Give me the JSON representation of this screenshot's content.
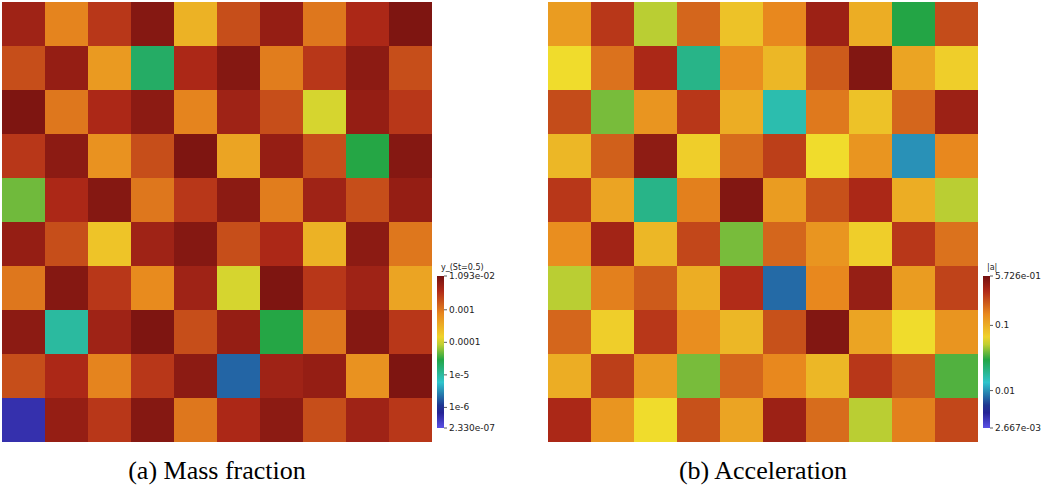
{
  "chart_data": [
    {
      "type": "heatmap",
      "title": "(a) Mass fraction",
      "log": true,
      "tick_labels": false,
      "colorbar_label": "y_(St=0.5)",
      "colorbar_range": [
        2.33e-07,
        0.01093
      ],
      "colorbar_ticks": [
        {
          "value": 2.33e-07,
          "label": "2.330e-07"
        },
        {
          "value": 1e-06,
          "label": "1e-6"
        },
        {
          "value": 1e-05,
          "label": "1e-5"
        },
        0.0001,
        0.001,
        {
          "value": 0.01093,
          "label": "1.093e-02"
        }
      ],
      "cells": [
        [
          0.005,
          0.0008,
          0.003,
          0.008,
          0.0003,
          0.002,
          0.006,
          0.001,
          0.004,
          0.009
        ],
        [
          0.002,
          0.006,
          0.0005,
          2e-05,
          0.004,
          0.008,
          0.0009,
          0.003,
          0.007,
          0.002
        ],
        [
          0.009,
          0.001,
          0.004,
          0.007,
          0.0008,
          0.005,
          0.002,
          0.0001,
          0.006,
          0.003
        ],
        [
          0.003,
          0.007,
          0.0006,
          0.002,
          0.009,
          0.0004,
          0.006,
          0.002,
          3e-05,
          0.008
        ],
        [
          5e-05,
          0.004,
          0.008,
          0.001,
          0.003,
          0.007,
          0.0009,
          0.005,
          0.002,
          0.006
        ],
        [
          0.006,
          0.002,
          0.0002,
          0.005,
          0.008,
          0.002,
          0.004,
          0.0003,
          0.007,
          0.001
        ],
        [
          0.001,
          0.008,
          0.003,
          0.0007,
          0.005,
          0.0001,
          0.009,
          0.003,
          0.005,
          0.0004
        ],
        [
          0.007,
          1e-05,
          0.005,
          0.009,
          0.002,
          0.006,
          3e-05,
          0.001,
          0.008,
          0.003
        ],
        [
          0.002,
          0.004,
          0.0008,
          0.003,
          0.007,
          2e-06,
          0.005,
          0.006,
          0.0006,
          0.009
        ],
        [
          5e-07,
          0.006,
          0.003,
          0.008,
          0.001,
          0.004,
          0.007,
          0.002,
          0.005,
          0.003
        ]
      ]
    },
    {
      "type": "heatmap",
      "title": "(b) Acceleration",
      "log": true,
      "tick_labels": false,
      "colorbar_label": "|a|",
      "colorbar_range": [
        0.002667,
        0.5726
      ],
      "colorbar_ticks": [
        {
          "value": 0.002667,
          "label": "2.667e-03"
        },
        0.01,
        0.1,
        {
          "value": 0.5726,
          "label": "5.726e-01"
        }
      ],
      "cells": [
        [
          0.12,
          0.3,
          0.05,
          0.2,
          0.08,
          0.15,
          0.4,
          0.1,
          0.03,
          0.25
        ],
        [
          0.06,
          0.18,
          0.35,
          0.02,
          0.14,
          0.09,
          0.22,
          0.5,
          0.11,
          0.07
        ],
        [
          0.25,
          0.04,
          0.13,
          0.3,
          0.1,
          0.016,
          0.17,
          0.08,
          0.2,
          0.4
        ],
        [
          0.09,
          0.21,
          0.45,
          0.07,
          0.19,
          0.28,
          0.06,
          0.13,
          0.01,
          0.15
        ],
        [
          0.3,
          0.11,
          0.02,
          0.16,
          0.5,
          0.12,
          0.24,
          0.35,
          0.1,
          0.05
        ],
        [
          0.14,
          0.38,
          0.09,
          0.26,
          0.04,
          0.2,
          0.13,
          0.07,
          0.3,
          0.18
        ],
        [
          0.05,
          0.16,
          0.22,
          0.1,
          0.33,
          0.008,
          0.15,
          0.42,
          0.12,
          0.27
        ],
        [
          0.2,
          0.07,
          0.3,
          0.14,
          0.09,
          0.24,
          0.5,
          0.11,
          0.06,
          0.13
        ],
        [
          0.1,
          0.28,
          0.12,
          0.04,
          0.2,
          0.15,
          0.09,
          0.3,
          0.22,
          0.035
        ],
        [
          0.35,
          0.13,
          0.06,
          0.24,
          0.11,
          0.4,
          0.19,
          0.05,
          0.16,
          0.26
        ]
      ]
    }
  ]
}
